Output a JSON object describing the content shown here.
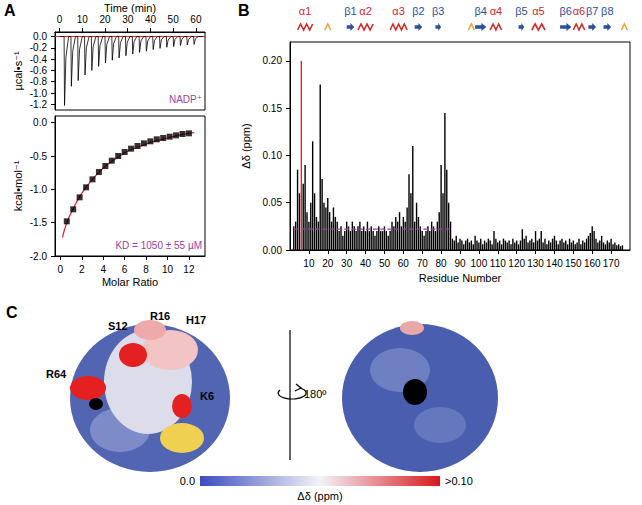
{
  "chart_data": [
    {
      "type": "line",
      "panel_label": "A",
      "x_label": "Time (min)",
      "y_label": "µcal•s⁻¹",
      "annotation": {
        "text": "NADP⁺",
        "color": "#9b3fa0"
      },
      "x": [
        0,
        2,
        2.2,
        2.8,
        4,
        5,
        5.2,
        5.8,
        7,
        8,
        8.2,
        8.8,
        10,
        11,
        11.2,
        11.8,
        13,
        14,
        14.2,
        14.8,
        16,
        17,
        17.2,
        17.8,
        19,
        20,
        20.2,
        20.8,
        22,
        23,
        23.2,
        23.8,
        25,
        26,
        26.2,
        26.8,
        28,
        29,
        29.2,
        29.8,
        31,
        32,
        32.2,
        32.8,
        34,
        35,
        35.2,
        35.8,
        37,
        38,
        38.2,
        38.8,
        40,
        41,
        41.2,
        41.8,
        43,
        44,
        44.2,
        44.8,
        46,
        47,
        47.2,
        47.8,
        49,
        50,
        50.2,
        50.8,
        52,
        53,
        53.2,
        53.8,
        55,
        56,
        56.2,
        56.8,
        58,
        59,
        59.2,
        59.8,
        61,
        63
      ],
      "values": [
        0,
        0,
        -1.22,
        -0.37,
        0,
        0,
        -0.88,
        -0.26,
        0,
        0,
        -0.78,
        -0.23,
        0,
        0,
        -0.68,
        -0.2,
        0,
        0,
        -0.6,
        -0.18,
        0,
        0,
        -0.53,
        -0.16,
        0,
        0,
        -0.47,
        -0.14,
        0,
        0,
        -0.42,
        -0.13,
        0,
        0,
        -0.38,
        -0.11,
        0,
        0,
        -0.34,
        -0.1,
        0,
        0,
        -0.31,
        -0.09,
        0,
        0,
        -0.28,
        -0.08,
        0,
        0,
        -0.26,
        -0.08,
        0,
        0,
        -0.23,
        -0.07,
        0,
        0,
        -0.21,
        -0.06,
        0,
        0,
        -0.19,
        -0.06,
        0,
        0,
        -0.18,
        -0.05,
        0,
        0,
        -0.16,
        -0.05,
        0,
        0,
        -0.15,
        -0.05,
        0,
        0,
        -0.14,
        -0.04,
        0,
        0
      ],
      "color": "#000000",
      "baseline": {
        "value": 0,
        "color": "#e8202a"
      },
      "xlim": [
        -2,
        64
      ],
      "xticks": [
        0,
        10,
        20,
        30,
        40,
        50,
        60
      ],
      "ylim": [
        -1.3,
        0.08
      ],
      "yticks": [
        {
          "value": 0,
          "label": "0.0"
        },
        -0.2,
        -0.4,
        -0.6,
        -0.8,
        {
          "value": -1,
          "label": "-1.0"
        },
        -1.2
      ]
    },
    {
      "type": "scatter",
      "x_label": "Molar Ratio",
      "y_label": "kcal•mol⁻¹",
      "annotation": {
        "text": "KD = 1050 ± 55 µM",
        "color": "#9b3fa0"
      },
      "x": [
        0.6,
        1.2,
        1.8,
        2.4,
        3.0,
        3.6,
        4.2,
        4.8,
        5.4,
        6.0,
        6.6,
        7.2,
        7.8,
        8.4,
        9.0,
        9.6,
        10.2,
        10.8,
        11.4,
        12.0
      ],
      "values": [
        -1.48,
        -1.3,
        -1.12,
        -0.97,
        -0.85,
        -0.74,
        -0.65,
        -0.57,
        -0.5,
        -0.44,
        -0.39,
        -0.35,
        -0.31,
        -0.28,
        -0.25,
        -0.23,
        -0.21,
        -0.19,
        -0.17,
        -0.16
      ],
      "color": "#000000",
      "marker": "square",
      "fit": {
        "x": [
          0.2,
          0.6,
          1.2,
          1.8,
          2.4,
          3.0,
          4.0,
          5.0,
          6.0,
          7.0,
          8.0,
          9.0,
          10.0,
          11.0,
          12.0,
          12.5
        ],
        "values": [
          -1.72,
          -1.5,
          -1.29,
          -1.11,
          -0.97,
          -0.85,
          -0.68,
          -0.56,
          -0.45,
          -0.38,
          -0.32,
          -0.27,
          -0.23,
          -0.19,
          -0.16,
          -0.15
        ],
        "color": "#e8202a"
      },
      "xlim": [
        -0.5,
        13.5
      ],
      "xticks": [
        0,
        2,
        4,
        6,
        8,
        10,
        12
      ],
      "ylim": [
        -2.0,
        0.1
      ],
      "yticks": [
        {
          "value": 0,
          "label": "0.0"
        },
        -0.5,
        {
          "value": -1,
          "label": "-1.0"
        },
        -1.5,
        {
          "value": -2,
          "label": "-2.0"
        }
      ]
    },
    {
      "type": "bar",
      "panel_label": "B",
      "x_label": "Residue Number",
      "y_label": "Δδ (ppm)",
      "x": [
        2,
        3,
        4,
        5,
        6,
        7,
        8,
        9,
        10,
        11,
        12,
        13,
        14,
        15,
        16,
        17,
        18,
        19,
        20,
        21,
        22,
        23,
        24,
        25,
        26,
        27,
        28,
        29,
        30,
        31,
        32,
        33,
        34,
        35,
        36,
        37,
        38,
        39,
        40,
        41,
        42,
        43,
        44,
        45,
        46,
        47,
        48,
        49,
        50,
        51,
        52,
        53,
        54,
        55,
        56,
        57,
        58,
        59,
        60,
        61,
        62,
        63,
        64,
        65,
        66,
        67,
        68,
        69,
        70,
        71,
        72,
        73,
        74,
        75,
        76,
        77,
        78,
        79,
        80,
        81,
        82,
        83,
        84,
        85,
        86,
        87,
        88,
        89,
        90,
        91,
        92,
        93,
        94,
        95,
        96,
        97,
        98,
        99,
        100,
        101,
        102,
        103,
        104,
        105,
        106,
        107,
        108,
        109,
        110,
        111,
        112,
        113,
        114,
        115,
        116,
        117,
        118,
        119,
        120,
        121,
        122,
        123,
        124,
        125,
        126,
        127,
        128,
        129,
        130,
        131,
        132,
        133,
        134,
        135,
        136,
        137,
        138,
        139,
        140,
        141,
        142,
        143,
        144,
        145,
        146,
        147,
        148,
        149,
        150,
        151,
        152,
        153,
        154,
        155,
        156,
        157,
        158,
        159,
        160,
        161,
        162,
        163,
        164,
        165,
        166,
        167,
        168,
        169,
        170,
        171,
        172,
        173,
        174,
        175,
        176
      ],
      "values": [
        0.025,
        0.03,
        0.085,
        0.06,
        0.2,
        0.07,
        0.09,
        0.04,
        0.03,
        0.05,
        0.115,
        0.06,
        0.035,
        0.03,
        0.175,
        0.075,
        0.05,
        0.045,
        0.055,
        0.04,
        0.03,
        0.045,
        0.035,
        0.03,
        0.02,
        0.025,
        0.015,
        0.02,
        0.03,
        0.025,
        0.02,
        0.03,
        0.025,
        0.02,
        0.025,
        0.03,
        0.02,
        0.025,
        0.02,
        0.03,
        0.02,
        0.025,
        0.02,
        0.015,
        0.02,
        0.025,
        0.02,
        0.02,
        0.025,
        0.02,
        0.015,
        0.02,
        0.03,
        0.025,
        0.035,
        0.03,
        0.04,
        0.025,
        0.035,
        0.03,
        0.045,
        0.08,
        0.06,
        0.11,
        0.03,
        0.05,
        0.035,
        0.025,
        0.02,
        0.015,
        0.02,
        0.025,
        0.02,
        0.03,
        0.025,
        0.02,
        0.03,
        0.04,
        0.09,
        0.06,
        0.145,
        0.085,
        0.05,
        0.03,
        0.012,
        0.01,
        0.015,
        0.008,
        0.012,
        0.01,
        0.006,
        0.01,
        0.012,
        0.008,
        0.01,
        0.006,
        0.015,
        0.01,
        0.008,
        0.012,
        0.006,
        0.01,
        0.008,
        0.012,
        0.01,
        0.006,
        0.02,
        0.012,
        0.008,
        0.01,
        0.006,
        0.012,
        0.01,
        0.008,
        0.01,
        0.006,
        0.012,
        0.008,
        0.01,
        0.006,
        0.01,
        0.022,
        0.012,
        0.015,
        0.008,
        0.01,
        0.012,
        0.008,
        0.02,
        0.01,
        0.012,
        0.02,
        0.008,
        0.012,
        0.006,
        0.01,
        0.008,
        0.012,
        0.015,
        0.01,
        0.006,
        0.01,
        0.012,
        0.008,
        0.01,
        0.006,
        0.012,
        0.008,
        0.01,
        0.006,
        0.008,
        0.012,
        0.006,
        0.01,
        0.008,
        0.012,
        0.015,
        0.018,
        0.025,
        0.02,
        0.012,
        0.008,
        0.01,
        0.015,
        0.008,
        0.006,
        0.01,
        0.008,
        0.012,
        0.006,
        0.008,
        0.005,
        0.006,
        0.004,
        0.005
      ],
      "colors": [
        "#000",
        "#000",
        "#000",
        "#000",
        "#e8202a",
        "#000",
        "#000",
        "#000",
        "#000",
        "#000",
        "#000",
        "#000",
        "#000",
        "#000",
        "#000",
        "#000",
        "#000",
        "#000",
        "#000",
        "#000",
        "#000",
        "#000",
        "#000",
        "#000",
        "#000",
        "#000",
        "#000",
        "#000",
        "#000",
        "#000",
        "#000",
        "#000",
        "#000",
        "#000",
        "#000",
        "#000",
        "#000",
        "#000",
        "#000",
        "#000",
        "#000",
        "#000",
        "#000",
        "#000",
        "#000",
        "#000",
        "#000",
        "#000",
        "#000",
        "#000",
        "#000",
        "#000",
        "#000",
        "#000",
        "#000",
        "#000",
        "#000",
        "#000",
        "#000",
        "#000",
        "#000",
        "#000",
        "#000",
        "#000",
        "#000",
        "#000",
        "#000",
        "#000",
        "#000",
        "#000",
        "#000",
        "#000",
        "#000",
        "#000",
        "#000",
        "#000",
        "#000",
        "#000",
        "#000",
        "#000",
        "#000",
        "#000",
        "#000",
        "#000",
        "#000",
        "#000",
        "#000",
        "#000",
        "#000",
        "#000",
        "#000",
        "#000",
        "#000",
        "#000",
        "#000",
        "#000",
        "#000",
        "#000",
        "#000",
        "#000",
        "#000",
        "#000",
        "#000",
        "#000",
        "#000",
        "#000",
        "#000",
        "#000",
        "#000",
        "#000",
        "#000",
        "#000",
        "#000",
        "#000",
        "#000",
        "#000",
        "#000",
        "#000",
        "#000",
        "#000",
        "#000",
        "#000",
        "#000",
        "#000",
        "#000",
        "#000",
        "#000",
        "#000",
        "#000",
        "#000",
        "#000",
        "#000",
        "#000",
        "#000",
        "#000",
        "#000",
        "#000",
        "#000",
        "#000",
        "#000",
        "#000",
        "#000",
        "#000",
        "#000",
        "#000",
        "#000",
        "#000",
        "#000",
        "#000",
        "#000",
        "#000",
        "#000",
        "#000",
        "#000",
        "#000",
        "#000",
        "#000",
        "#000",
        "#000",
        "#000",
        "#000",
        "#000",
        "#000",
        "#000",
        "#000",
        "#000",
        "#000",
        "#000",
        "#000",
        "#000",
        "#000",
        "#000",
        "#000",
        "#000",
        "#000"
      ],
      "mean_line": {
        "x": [
          2,
          85
        ],
        "value": 0.022,
        "color": "#9b3fa0",
        "line_style": "dashed"
      },
      "secondary_structure": [
        {
          "label": "α1",
          "type": "helix",
          "start": 4,
          "end": 12,
          "color": "#d42a2a"
        },
        {
          "label": "β1",
          "type": "strand",
          "start": 30,
          "end": 34,
          "color": "#2e4f9e"
        },
        {
          "label": "α2",
          "type": "helix",
          "start": 36,
          "end": 44,
          "color": "#d42a2a"
        },
        {
          "label": "α3",
          "type": "helix",
          "start": 53,
          "end": 62,
          "color": "#d42a2a"
        },
        {
          "label": "β2",
          "type": "strand",
          "start": 66,
          "end": 70,
          "color": "#2e4f9e"
        },
        {
          "label": "β3",
          "type": "strand",
          "start": 77,
          "end": 80,
          "color": "#2e4f9e"
        },
        {
          "label": "β4",
          "type": "strand",
          "start": 98,
          "end": 104,
          "color": "#2e4f9e"
        },
        {
          "label": "α4",
          "type": "helix",
          "start": 106,
          "end": 112,
          "color": "#d42a2a"
        },
        {
          "label": "β5",
          "type": "strand",
          "start": 121,
          "end": 124,
          "color": "#2e4f9e"
        },
        {
          "label": "α5",
          "type": "helix",
          "start": 128,
          "end": 135,
          "color": "#d42a2a"
        },
        {
          "label": "β6",
          "type": "strand",
          "start": 143,
          "end": 149,
          "color": "#2e4f9e"
        },
        {
          "label": "α6",
          "type": "helix",
          "start": 150,
          "end": 156,
          "color": "#d42a2a"
        },
        {
          "label": "β7",
          "type": "strand",
          "start": 158,
          "end": 162,
          "color": "#2e4f9e"
        },
        {
          "label": "β8",
          "type": "strand",
          "start": 166,
          "end": 170,
          "color": "#2e4f9e"
        }
      ],
      "turns": {
        "positions": [
          20,
          96,
          177
        ],
        "color": "#f0a030"
      },
      "xlim": [
        0,
        180
      ],
      "xticks": [
        10,
        20,
        30,
        40,
        50,
        60,
        70,
        80,
        90,
        100,
        110,
        120,
        130,
        140,
        150,
        160,
        170
      ],
      "ylim": [
        0,
        0.22
      ],
      "yticks": [
        {
          "value": 0,
          "label": "0.00"
        },
        0.05,
        {
          "value": 0.1,
          "label": "0.10"
        },
        0.15,
        {
          "value": 0.2,
          "label": "0.20"
        }
      ]
    }
  ],
  "panel_c": {
    "panel_label": "C",
    "residue_labels": [
      "S12",
      "R16",
      "H17",
      "R64",
      "K6"
    ],
    "rotation_label": "180º",
    "colorbar": {
      "title": "Δδ (ppm)",
      "range": [
        0,
        0.1
      ],
      "ticks": [
        {
          "value": 0,
          "label": "0.0"
        },
        {
          "value": 0.1,
          "label": ">0.10"
        }
      ]
    }
  }
}
